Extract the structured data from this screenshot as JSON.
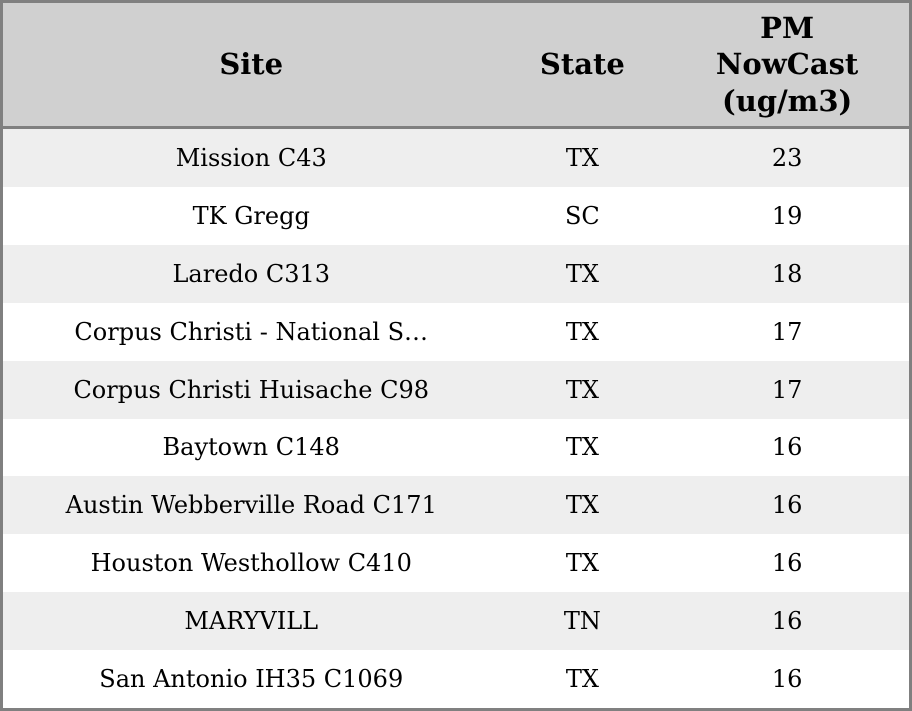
{
  "colors": {
    "border": "#808080",
    "header_bg": "#d0d0d0",
    "row_odd_bg": "#eeeeee",
    "row_even_bg": "#ffffff",
    "text": "#000000"
  },
  "table": {
    "header": {
      "site": "Site",
      "state": "State",
      "pm": "PM\nNowCast\n(ug/m3)"
    },
    "rows": [
      {
        "site": "Mission C43",
        "state": "TX",
        "pm": "23"
      },
      {
        "site": "TK Gregg",
        "state": "SC",
        "pm": "19"
      },
      {
        "site": "Laredo C313",
        "state": "TX",
        "pm": "18"
      },
      {
        "site": "Corpus Christi - National S…",
        "state": "TX",
        "pm": "17"
      },
      {
        "site": "Corpus Christi Huisache C98",
        "state": "TX",
        "pm": "17"
      },
      {
        "site": "Baytown C148",
        "state": "TX",
        "pm": "16"
      },
      {
        "site": "Austin Webberville Road C171",
        "state": "TX",
        "pm": "16"
      },
      {
        "site": "Houston Westhollow C410",
        "state": "TX",
        "pm": "16"
      },
      {
        "site": "MARYVILL",
        "state": "TN",
        "pm": "16"
      },
      {
        "site": "San Antonio IH35 C1069",
        "state": "TX",
        "pm": "16"
      }
    ]
  }
}
